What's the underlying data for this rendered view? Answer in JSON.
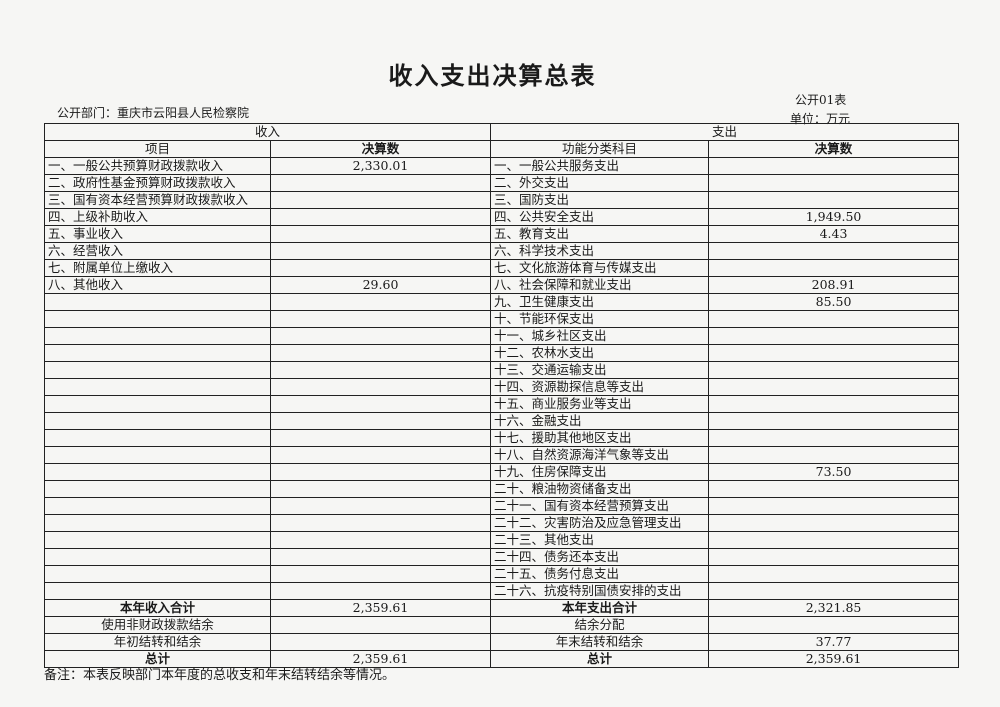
{
  "title": "收入支出决算总表",
  "department": "公开部门：重庆市云阳县人民检察院",
  "form_no": "公开01表",
  "unit": "单位：万元",
  "income_header": "收入",
  "expense_header": "支出",
  "income_col_item": "项目",
  "income_col_value": "决算数",
  "expense_col_item": "功能分类科目",
  "expense_col_value": "决算数",
  "rows": [
    {
      "in_item": "一、一般公共预算财政拨款收入",
      "in_val": "2,330.01",
      "ex_item": "一、一般公共服务支出",
      "ex_val": ""
    },
    {
      "in_item": "二、政府性基金预算财政拨款收入",
      "in_val": "",
      "ex_item": "二、外交支出",
      "ex_val": ""
    },
    {
      "in_item": "三、国有资本经营预算财政拨款收入",
      "in_val": "",
      "ex_item": "三、国防支出",
      "ex_val": ""
    },
    {
      "in_item": "四、上级补助收入",
      "in_val": "",
      "ex_item": "四、公共安全支出",
      "ex_val": "1,949.50"
    },
    {
      "in_item": "五、事业收入",
      "in_val": "",
      "ex_item": "五、教育支出",
      "ex_val": "4.43"
    },
    {
      "in_item": "六、经营收入",
      "in_val": "",
      "ex_item": "六、科学技术支出",
      "ex_val": ""
    },
    {
      "in_item": "七、附属单位上缴收入",
      "in_val": "",
      "ex_item": "七、文化旅游体育与传媒支出",
      "ex_val": ""
    },
    {
      "in_item": "八、其他收入",
      "in_val": "29.60",
      "ex_item": "八、社会保障和就业支出",
      "ex_val": "208.91"
    },
    {
      "in_item": "",
      "in_val": "",
      "ex_item": "九、卫生健康支出",
      "ex_val": "85.50"
    },
    {
      "in_item": "",
      "in_val": "",
      "ex_item": "十、节能环保支出",
      "ex_val": ""
    },
    {
      "in_item": "",
      "in_val": "",
      "ex_item": "十一、城乡社区支出",
      "ex_val": ""
    },
    {
      "in_item": "",
      "in_val": "",
      "ex_item": "十二、农林水支出",
      "ex_val": ""
    },
    {
      "in_item": "",
      "in_val": "",
      "ex_item": "十三、交通运输支出",
      "ex_val": ""
    },
    {
      "in_item": "",
      "in_val": "",
      "ex_item": "十四、资源勘探信息等支出",
      "ex_val": ""
    },
    {
      "in_item": "",
      "in_val": "",
      "ex_item": "十五、商业服务业等支出",
      "ex_val": ""
    },
    {
      "in_item": "",
      "in_val": "",
      "ex_item": "十六、金融支出",
      "ex_val": ""
    },
    {
      "in_item": "",
      "in_val": "",
      "ex_item": "十七、援助其他地区支出",
      "ex_val": ""
    },
    {
      "in_item": "",
      "in_val": "",
      "ex_item": "十八、自然资源海洋气象等支出",
      "ex_val": ""
    },
    {
      "in_item": "",
      "in_val": "",
      "ex_item": "十九、住房保障支出",
      "ex_val": "73.50"
    },
    {
      "in_item": "",
      "in_val": "",
      "ex_item": "二十、粮油物资储备支出",
      "ex_val": ""
    },
    {
      "in_item": "",
      "in_val": "",
      "ex_item": "二十一、国有资本经营预算支出",
      "ex_val": ""
    },
    {
      "in_item": "",
      "in_val": "",
      "ex_item": "二十二、灾害防治及应急管理支出",
      "ex_val": ""
    },
    {
      "in_item": "",
      "in_val": "",
      "ex_item": "二十三、其他支出",
      "ex_val": ""
    },
    {
      "in_item": "",
      "in_val": "",
      "ex_item": "二十四、债务还本支出",
      "ex_val": ""
    },
    {
      "in_item": "",
      "in_val": "",
      "ex_item": "二十五、债务付息支出",
      "ex_val": ""
    },
    {
      "in_item": "",
      "in_val": "",
      "ex_item": "二十六、抗疫特别国债安排的支出",
      "ex_val": ""
    }
  ],
  "summary": [
    {
      "in_item": "本年收入合计",
      "in_val": "2,359.61",
      "ex_item": "本年支出合计",
      "ex_val": "2,321.85",
      "bold": true
    },
    {
      "in_item": "使用非财政拨款结余",
      "in_val": "",
      "ex_item": "结余分配",
      "ex_val": "",
      "bold": false
    },
    {
      "in_item": "年初结转和结余",
      "in_val": "",
      "ex_item": "年末结转和结余",
      "ex_val": "37.77",
      "bold": false
    },
    {
      "in_item": "总计",
      "in_val": "2,359.61",
      "ex_item": "总计",
      "ex_val": "2,359.61",
      "bold": true
    }
  ],
  "note": "备注：本表反映部门本年度的总收支和年末结转结余等情况。"
}
